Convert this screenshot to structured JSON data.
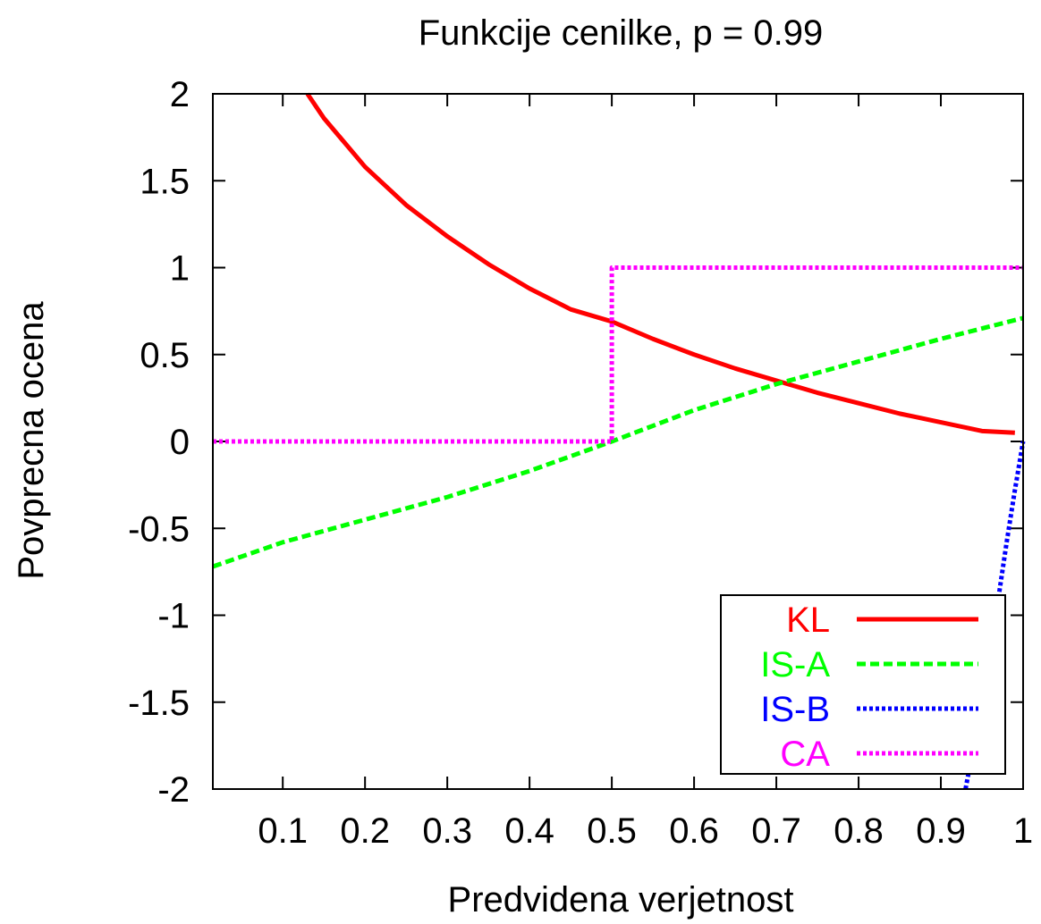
{
  "chart_data": {
    "type": "line",
    "title": "Funkcije cenilke, p = 0.99",
    "xlabel": "Predvidena verjetnost",
    "ylabel": "Povprecna ocena",
    "xlim": [
      0.015,
      1.0
    ],
    "ylim": [
      -2,
      2
    ],
    "xticks": [
      0.1,
      0.2,
      0.3,
      0.4,
      0.5,
      0.6,
      0.7,
      0.8,
      0.9,
      1
    ],
    "xtick_labels": [
      "0.1",
      "0.2",
      "0.3",
      "0.4",
      "0.5",
      "0.6",
      "0.7",
      "0.8",
      "0.9",
      "1"
    ],
    "yticks": [
      2,
      1.5,
      1,
      0.5,
      0,
      -0.5,
      -1,
      -1.5,
      -2
    ],
    "ytick_labels": [
      "2",
      "1.5",
      "1",
      "0.5",
      "0",
      "-0.5",
      "-1",
      "-1.5",
      "-2"
    ],
    "grid": false,
    "legend_position": "bottom-right",
    "series": [
      {
        "name": "KL",
        "color": "#ff0000",
        "dash": "solid",
        "x": [
          0.13,
          0.15,
          0.2,
          0.25,
          0.3,
          0.35,
          0.4,
          0.45,
          0.5,
          0.55,
          0.6,
          0.65,
          0.7,
          0.75,
          0.8,
          0.85,
          0.9,
          0.95,
          0.99
        ],
        "y": [
          2.0,
          1.86,
          1.58,
          1.36,
          1.18,
          1.02,
          0.88,
          0.76,
          0.69,
          0.59,
          0.5,
          0.42,
          0.35,
          0.28,
          0.22,
          0.16,
          0.11,
          0.06,
          0.05
        ]
      },
      {
        "name": "IS-A",
        "color": "#00ff00",
        "dash": "dashed",
        "x": [
          0.015,
          0.1,
          0.2,
          0.3,
          0.4,
          0.5,
          0.6,
          0.7,
          0.8,
          0.9,
          1.0
        ],
        "y": [
          -0.72,
          -0.58,
          -0.45,
          -0.32,
          -0.17,
          0.0,
          0.18,
          0.33,
          0.46,
          0.59,
          0.71
        ]
      },
      {
        "name": "IS-B",
        "color": "#0000ff",
        "dash": "dotted",
        "x": [
          0.93,
          0.94,
          0.95,
          0.96,
          0.97,
          0.98,
          0.99,
          1.0
        ],
        "y": [
          -2.0,
          -1.75,
          -1.5,
          -1.2,
          -0.9,
          -0.58,
          -0.28,
          0.0
        ]
      },
      {
        "name": "CA",
        "color": "#ff00ff",
        "dash": "dotted",
        "x": [
          0.015,
          0.5,
          0.5,
          1.0
        ],
        "y": [
          0.0,
          0.0,
          1.0,
          1.0
        ]
      }
    ]
  }
}
